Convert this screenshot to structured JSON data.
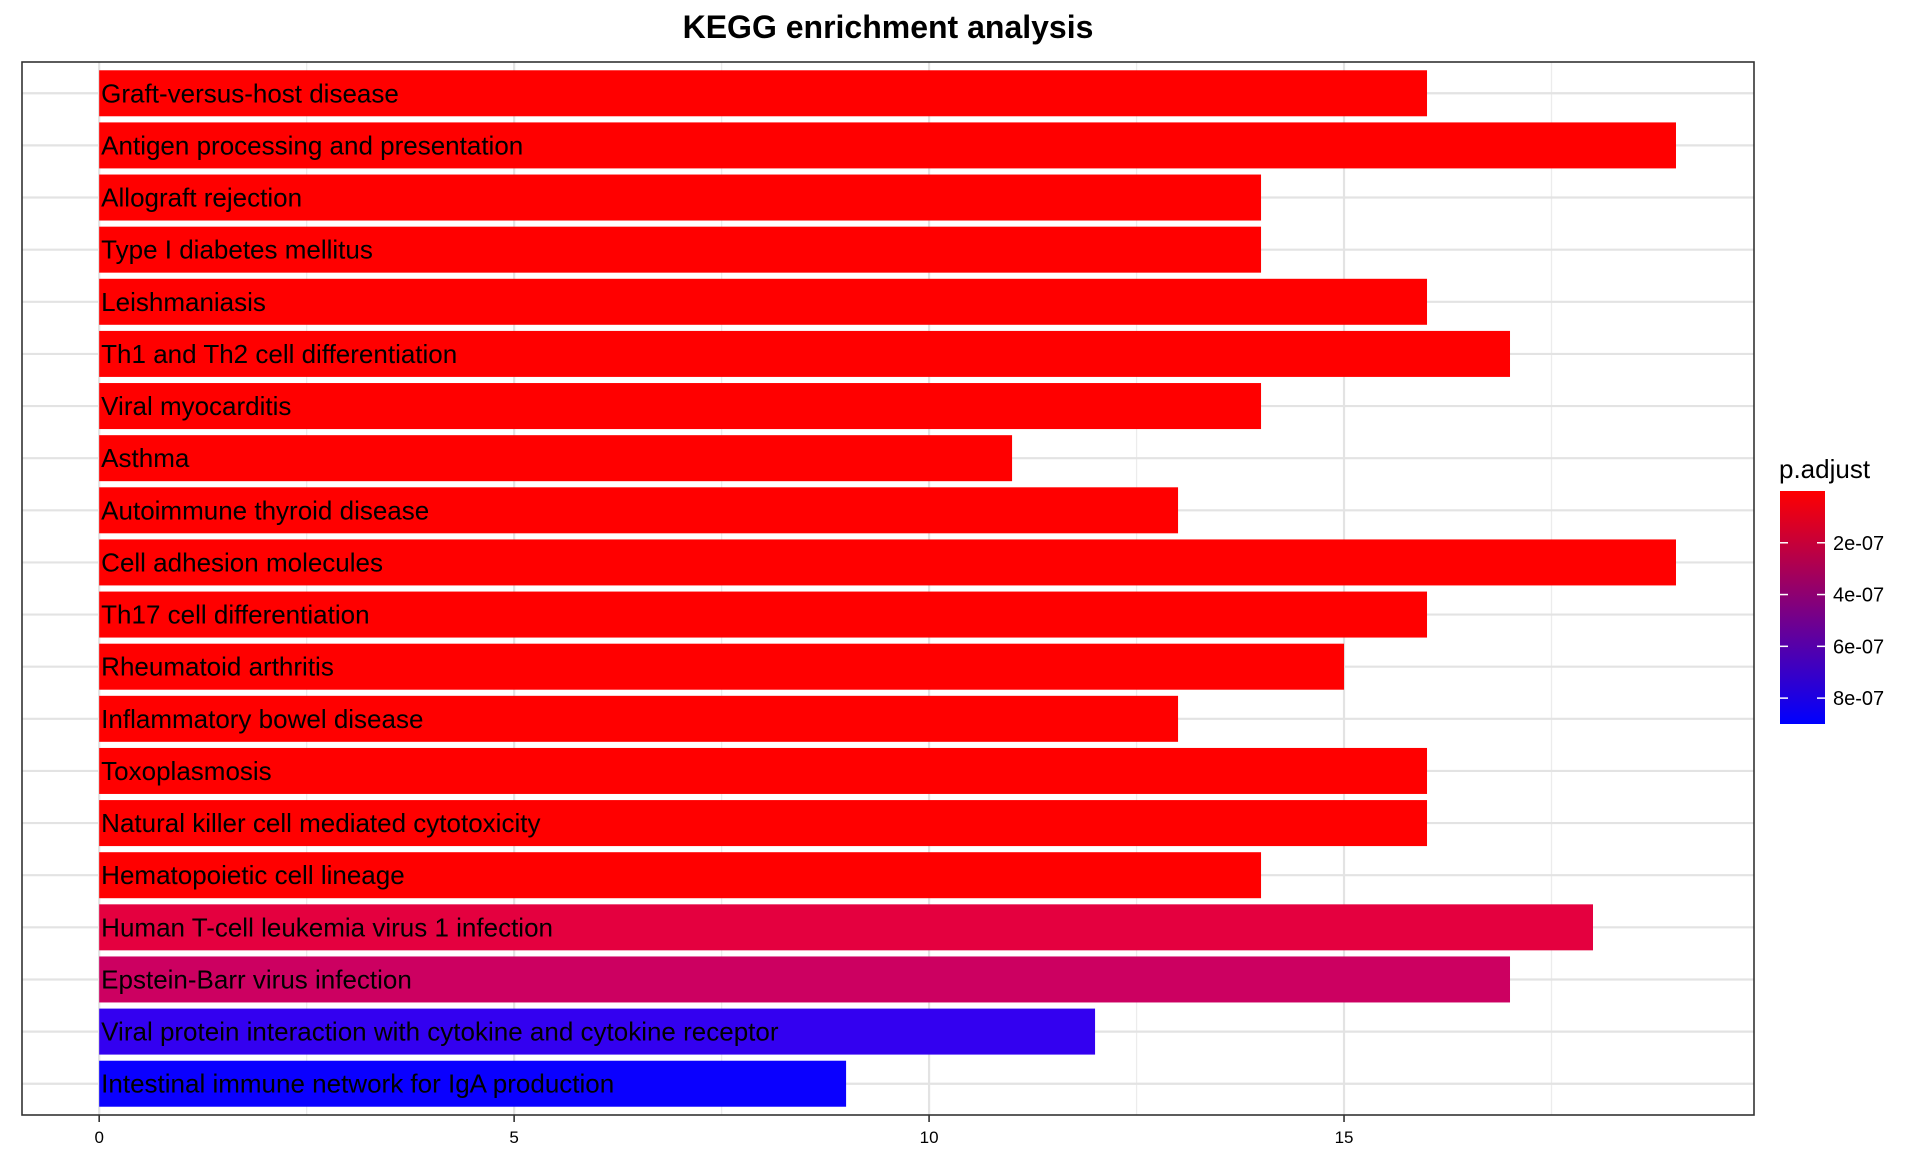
{
  "chart_data": {
    "type": "bar",
    "orientation": "horizontal",
    "title": "KEGG enrichment analysis",
    "xlabel": "",
    "ylabel": "",
    "xlim": [
      -0.93,
      19.94
    ],
    "x_ticks": [
      0,
      5,
      10,
      15
    ],
    "x_tick_labels": [
      "0",
      "5",
      "10",
      "15"
    ],
    "grid": true,
    "categories": [
      "Graft-versus-host disease",
      "Antigen processing and presentation",
      "Allograft rejection",
      "Type I diabetes mellitus",
      "Leishmaniasis",
      "Th1 and Th2 cell differentiation",
      "Viral myocarditis",
      "Asthma",
      "Autoimmune thyroid disease",
      "Cell adhesion molecules",
      "Th17 cell differentiation",
      "Rheumatoid arthritis",
      "Inflammatory bowel disease",
      "Toxoplasmosis",
      "Natural killer cell mediated cytotoxicity",
      "Hematopoietic cell lineage",
      "Human T-cell leukemia virus 1 infection",
      "Epstein-Barr virus infection",
      "Viral protein interaction with cytokine and cytokine receptor",
      "Intestinal immune network for IgA production"
    ],
    "values": [
      16,
      19,
      14,
      14,
      16,
      17,
      14,
      11,
      13,
      19,
      16,
      15,
      13,
      16,
      16,
      14,
      18,
      17,
      12,
      9
    ],
    "colors": [
      "#ff0000",
      "#ff0000",
      "#ff0000",
      "#ff0000",
      "#ff0000",
      "#ff0000",
      "#ff0000",
      "#ff0000",
      "#ff0000",
      "#ff0000",
      "#ff0000",
      "#ff0000",
      "#ff0000",
      "#ff0000",
      "#ff0000",
      "#ff0000",
      "#e4003f",
      "#cc0061",
      "#3300f0",
      "#0a00ff"
    ],
    "legend": {
      "title": "p.adjust",
      "position": "right",
      "gradient_low_color": "#ff0000",
      "gradient_high_color": "#0000ff",
      "range": [
        0,
        9e-07
      ],
      "ticks": [
        2e-07,
        4e-07,
        6e-07,
        8e-07
      ],
      "tick_labels": [
        "2e-07",
        "4e-07",
        "6e-07",
        "8e-07"
      ]
    }
  }
}
